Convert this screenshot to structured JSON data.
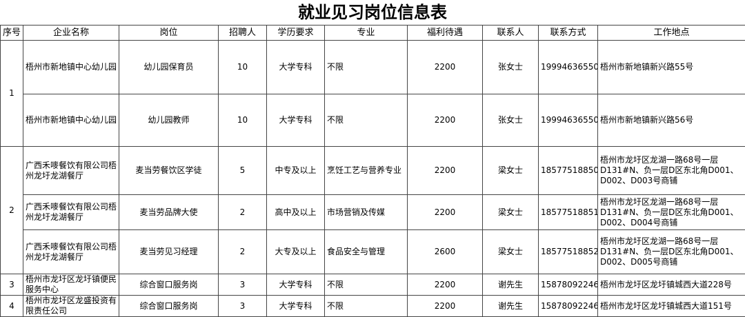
{
  "title": "就业见习岗位信息表",
  "table": {
    "headers": [
      "序号",
      "企业名称",
      "岗位",
      "招聘人",
      "学历要求",
      "专业",
      "福利待遇",
      "联系人",
      "联系方式",
      "工作地点"
    ],
    "groups": [
      {
        "index": "1",
        "rows": [
          [
            "梧州市新地镇中心幼儿园",
            "幼儿园保育员",
            "10",
            "大学专科",
            "不限",
            "2200",
            "张女士",
            "19994636550",
            "梧州市新地镇新兴路55号"
          ],
          [
            "梧州市新地镇中心幼儿园",
            "幼儿园教师",
            "10",
            "大学专科",
            "不限",
            "2200",
            "张女士",
            "19994636550",
            "梧州市新地镇新兴路56号"
          ]
        ]
      },
      {
        "index": "2",
        "rows": [
          [
            "广西禾嘜餐饮有限公司梧州龙圩龙湖餐厅",
            "麦当劳餐饮区学徒",
            "5",
            "中专及以上",
            "烹饪工艺与营养专业",
            "2200",
            "梁女士",
            "18577518850",
            "梧州市龙圩区龙湖一路68号一层D131#N、负一层D区东北角D001、D002、D003号商铺"
          ],
          [
            "广西禾嘜餐饮有限公司梧州龙圩龙湖餐厅",
            "麦当劳品牌大使",
            "2",
            "高中及以上",
            "市场营销及传媒",
            "2200",
            "梁女士",
            "18577518851",
            "梧州市龙圩区龙湖一路68号一层D131#N、负一层D区东北角D001、D002、D004号商铺"
          ],
          [
            "广西禾嘜餐饮有限公司梧州龙圩龙湖餐厅",
            "麦当劳见习经理",
            "2",
            "大专及以上",
            "食品安全与管理",
            "2600",
            "梁女士",
            "18577518852",
            "梧州市龙圩区龙湖一路68号一层D131#N、负一层D区东北角D001、D002、D005号商铺"
          ]
        ]
      },
      {
        "index": "3",
        "rows": [
          [
            "梧州市龙圩区龙圩镇便民服务中心",
            "综合窗口服务岗",
            "3",
            "大学专科",
            "不限",
            "2200",
            "谢先生",
            "15878092246",
            "梧州市龙圩区龙圩镇城西大道228号"
          ]
        ]
      },
      {
        "index": "4",
        "rows": [
          [
            "梧州市龙圩区龙盛投资有限责任公司",
            "综合窗口服务岗",
            "3",
            "大学专科",
            "不限",
            "2200",
            "谢先生",
            "15878092246",
            "梧州市龙圩区龙圩镇城西大道151号"
          ]
        ]
      }
    ]
  }
}
